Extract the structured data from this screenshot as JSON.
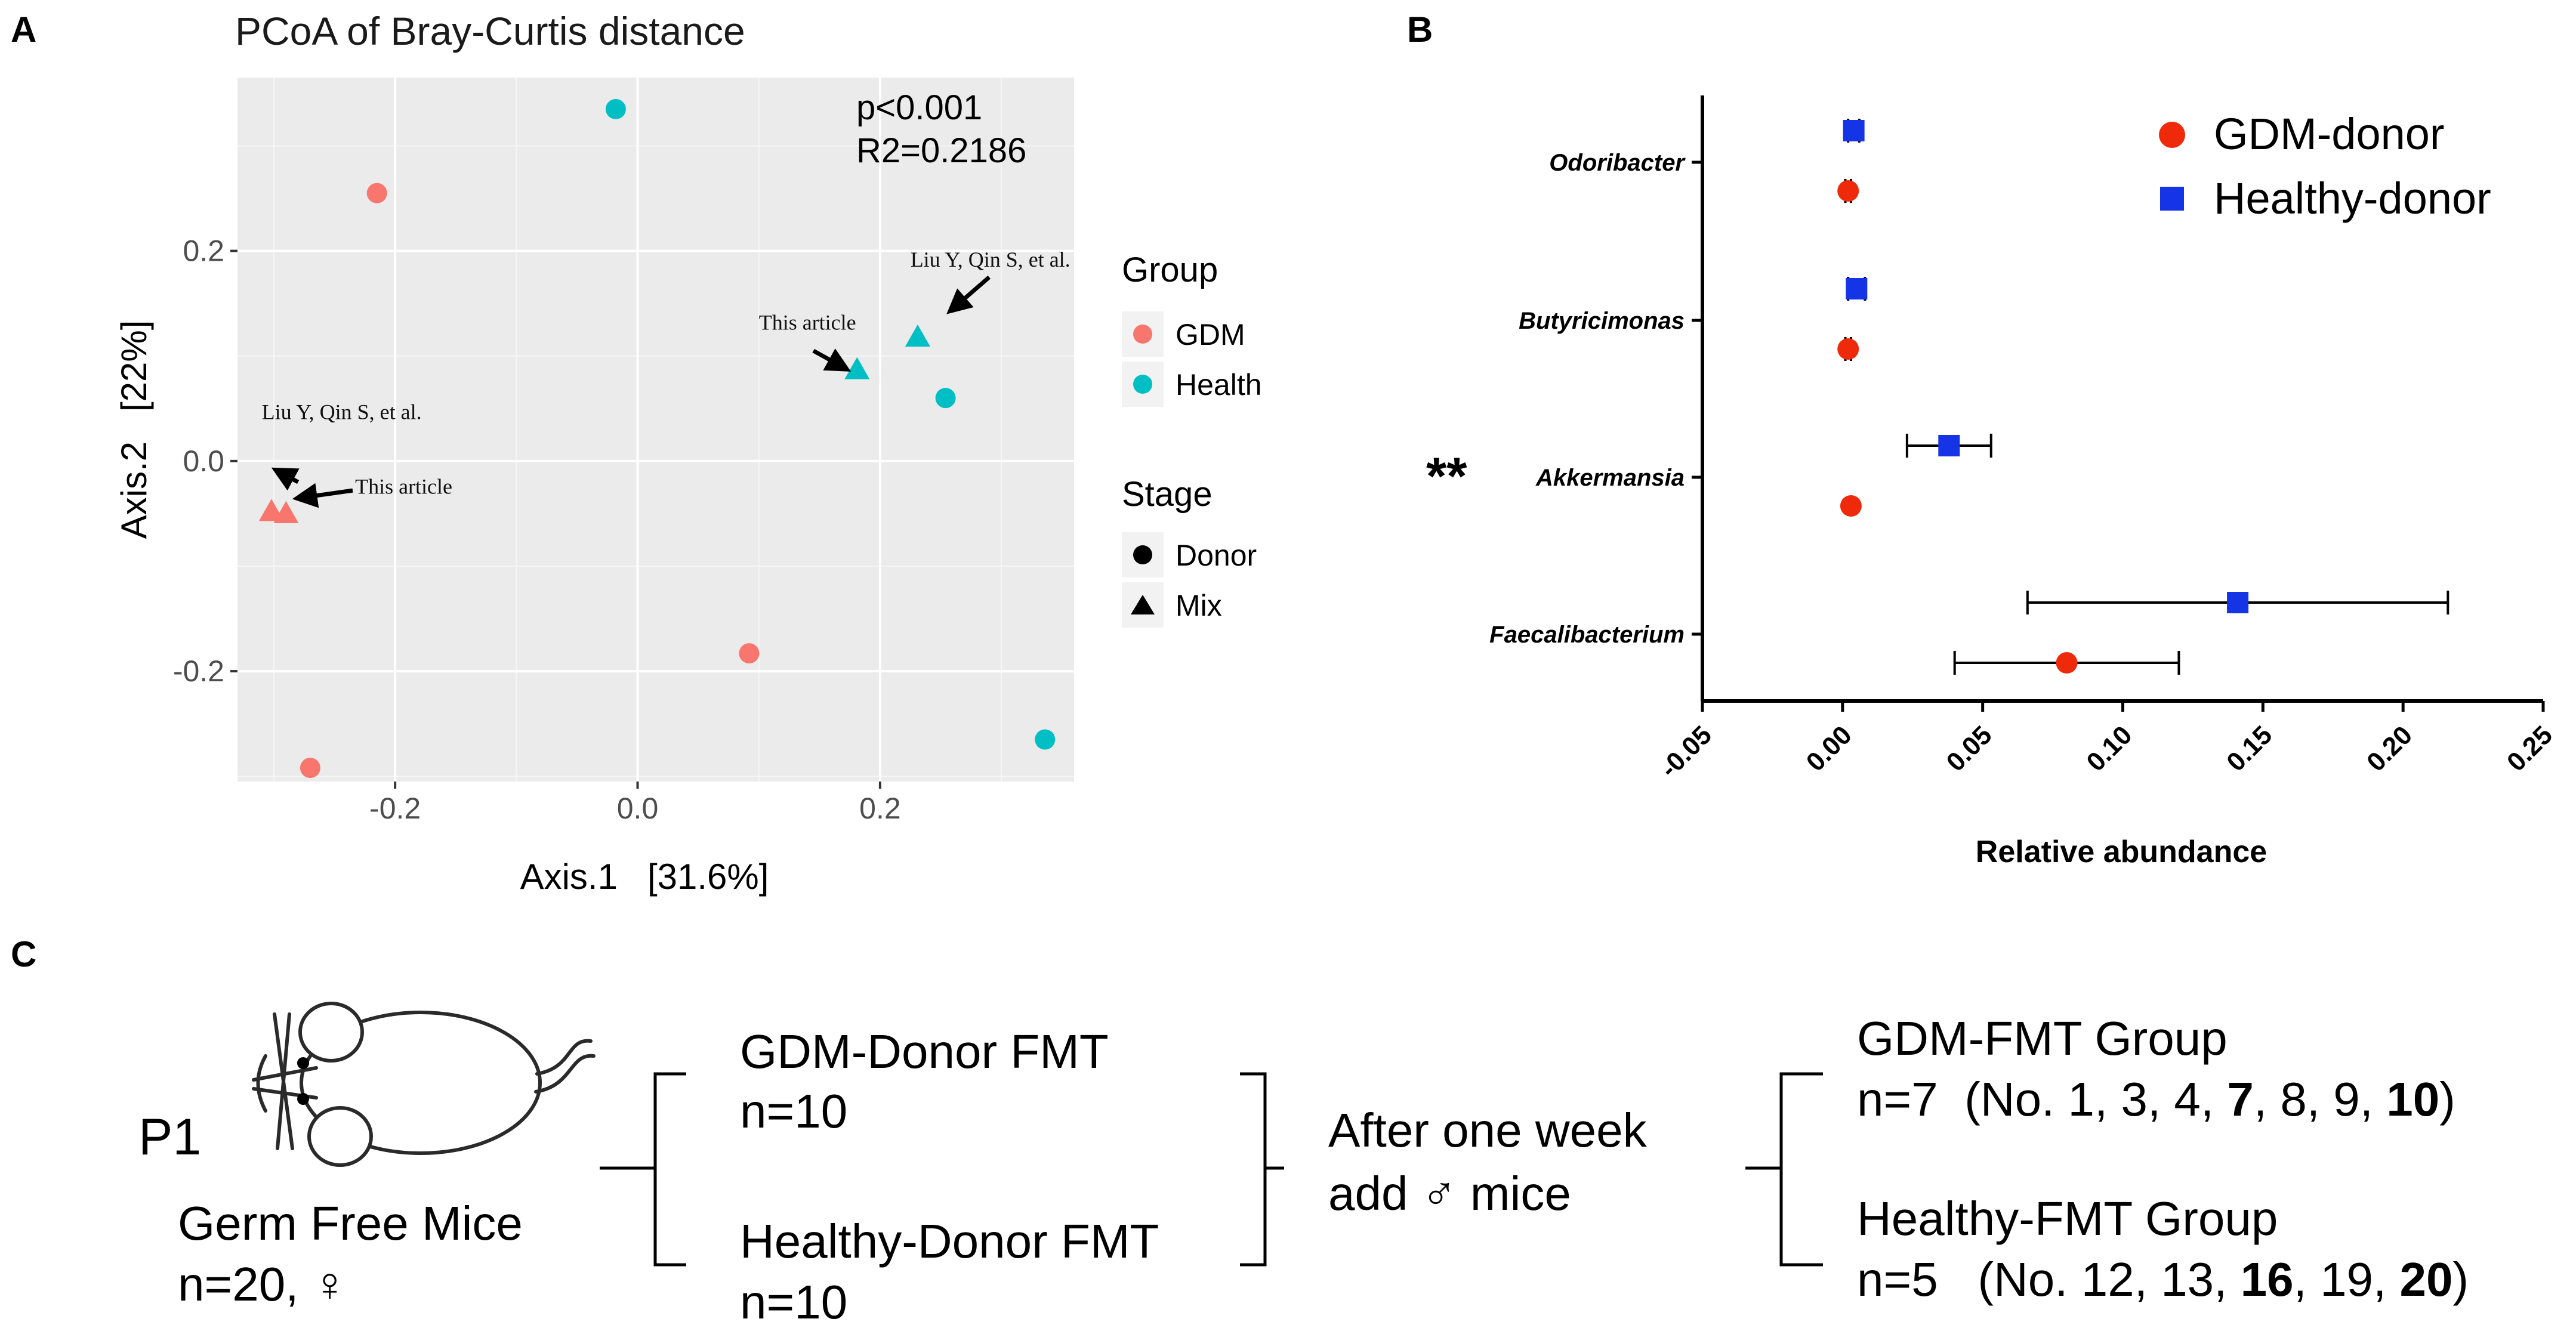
{
  "panel_letters": {
    "a": "A",
    "b": "B",
    "c": "C"
  },
  "chart_data": [
    {
      "panel": "A",
      "type": "scatter",
      "title": "PCoA of Bray-Curtis distance",
      "xlabel": "Axis.1   [31.6%]",
      "ylabel": "Axis.2   [22%]",
      "xlim": [
        -0.33,
        0.36
      ],
      "ylim": [
        -0.305,
        0.365
      ],
      "xticks": [
        -0.2,
        0.0,
        0.2
      ],
      "xtick_labels": [
        "-0.2",
        "0.0",
        "0.2"
      ],
      "yticks": [
        -0.2,
        0.0,
        0.2
      ],
      "ytick_labels": [
        "-0.2",
        "0.0",
        "0.2"
      ],
      "grid": true,
      "stats": [
        "p<0.001",
        "R2=0.2186"
      ],
      "colors": {
        "GDM": "#F8766D",
        "Health": "#00BFC4",
        "panel_bg": "#EBEBEB"
      },
      "legend": {
        "group_title": "Group",
        "group_items": [
          "GDM",
          "Health"
        ],
        "stage_title": "Stage",
        "stage_items": [
          "Donor",
          "Mix"
        ]
      },
      "points": [
        {
          "x": -0.215,
          "y": 0.255,
          "group": "GDM",
          "stage": "Donor"
        },
        {
          "x": 0.092,
          "y": -0.183,
          "group": "GDM",
          "stage": "Donor"
        },
        {
          "x": -0.27,
          "y": -0.292,
          "group": "GDM",
          "stage": "Donor"
        },
        {
          "x": -0.018,
          "y": 0.335,
          "group": "Health",
          "stage": "Donor"
        },
        {
          "x": 0.254,
          "y": 0.06,
          "group": "Health",
          "stage": "Donor"
        },
        {
          "x": 0.336,
          "y": -0.265,
          "group": "Health",
          "stage": "Donor"
        },
        {
          "x": 0.181,
          "y": 0.087,
          "group": "Health",
          "stage": "Mix"
        },
        {
          "x": 0.231,
          "y": 0.118,
          "group": "Health",
          "stage": "Mix"
        },
        {
          "x": -0.302,
          "y": -0.048,
          "group": "GDM",
          "stage": "Mix"
        },
        {
          "x": -0.29,
          "y": -0.05,
          "group": "GDM",
          "stage": "Mix"
        }
      ],
      "annotations": [
        {
          "text": "Liu Y, Qin S, et al.",
          "x": 0.225,
          "y": 0.185
        },
        {
          "text": "This article",
          "x": 0.1,
          "y": 0.125
        },
        {
          "text": "Liu Y, Qin S, et al.",
          "x": -0.31,
          "y": 0.04
        },
        {
          "text": "This article",
          "x": -0.233,
          "y": -0.031
        }
      ]
    },
    {
      "panel": "B",
      "type": "dot-errorbar",
      "xlabel": "Relative abundance",
      "xlim": [
        -0.05,
        0.25
      ],
      "xticks": [
        -0.05,
        0.0,
        0.05,
        0.1,
        0.15,
        0.2,
        0.25
      ],
      "xtick_labels": [
        "-0.05",
        "0.00",
        "0.05",
        "0.10",
        "0.15",
        "0.20",
        "0.25"
      ],
      "categories": [
        "Odoribacter",
        "Butyricimonas",
        "Akkermansia",
        "Faecalibacterium"
      ],
      "significance": {
        "Akkermansia": "**"
      },
      "series": [
        {
          "name": "GDM-donor",
          "color": "#EE2A0B",
          "marker": "circle",
          "values": [
            0.002,
            0.002,
            0.003,
            0.08
          ],
          "err_low": [
            0.001,
            0.001,
            0.003,
            0.04
          ],
          "err_high": [
            0.003,
            0.003,
            0.003,
            0.12
          ]
        },
        {
          "name": "Healthy-donor",
          "color": "#1434E6",
          "marker": "square",
          "values": [
            0.004,
            0.005,
            0.038,
            0.141
          ],
          "err_low": [
            0.002,
            0.002,
            0.023,
            0.066
          ],
          "err_high": [
            0.006,
            0.008,
            0.053,
            0.216
          ]
        }
      ]
    }
  ],
  "panel_c": {
    "p_label": "P1",
    "germ_free": {
      "line1": "Germ Free Mice",
      "line2": "n=20, ♀"
    },
    "donor_fmt": [
      {
        "title": "GDM-Donor FMT",
        "n": "n=10"
      },
      {
        "title": "Healthy-Donor FMT",
        "n": "n=10"
      }
    ],
    "after": {
      "line1": "After one week",
      "line2": "add ♂ mice"
    },
    "groups": [
      {
        "title": "GDM-FMT Group",
        "n": "n=7",
        "open": "(No. 1, 3, 4, ",
        "b1": "7",
        "mid": ", 8, 9, ",
        "b2": "10",
        "close": ")"
      },
      {
        "title": "Healthy-FMT Group",
        "n": "n=5",
        "open": "(No. 12, 13, ",
        "b1": "16",
        "mid": ", 19, ",
        "b2": "20",
        "close": ")"
      }
    ]
  }
}
